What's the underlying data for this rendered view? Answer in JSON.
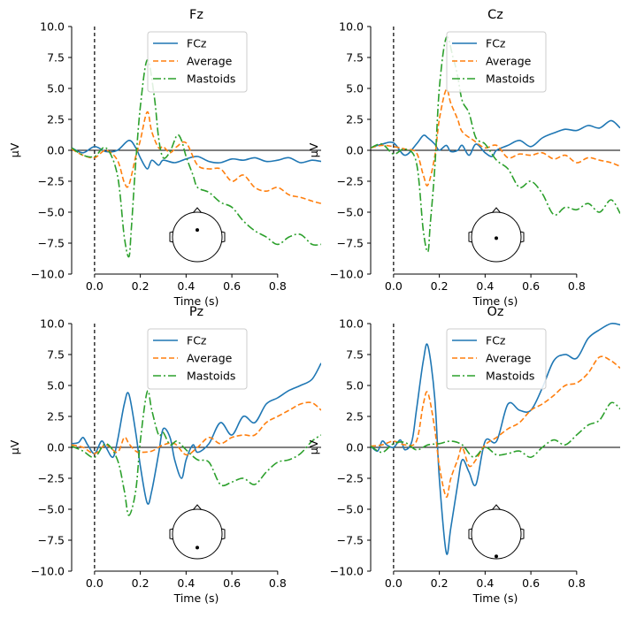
{
  "chart_data": [
    {
      "type": "line",
      "title": "Fz",
      "xlabel": "Time (s)",
      "ylabel": "µV",
      "xlim": [
        -0.1,
        0.99
      ],
      "ylim": [
        -10.0,
        10.0
      ],
      "xticks": [
        0.0,
        0.2,
        0.4,
        0.6,
        0.8
      ],
      "xtick_labels": [
        "0.0",
        "0.2",
        "0.4",
        "0.6",
        "0.8"
      ],
      "yticks": [
        -10.0,
        -7.5,
        -5.0,
        -2.5,
        0.0,
        2.5,
        5.0,
        7.5,
        10.0
      ],
      "ytick_labels": [
        "−10.0",
        "−7.5",
        "−5.0",
        "−2.5",
        "0.0",
        "2.5",
        "5.0",
        "7.5",
        "10.0"
      ],
      "legend": "upper center",
      "sensor": "front-center",
      "series": [
        {
          "name": "FCz",
          "color": "#1f77b4",
          "dash": "solid",
          "x": [
            -0.1,
            -0.05,
            0.0,
            0.05,
            0.1,
            0.15,
            0.18,
            0.2,
            0.23,
            0.25,
            0.28,
            0.3,
            0.35,
            0.4,
            0.45,
            0.5,
            0.55,
            0.6,
            0.65,
            0.7,
            0.75,
            0.8,
            0.85,
            0.9,
            0.95,
            0.99
          ],
          "y": [
            0.2,
            -0.2,
            0.3,
            -0.1,
            0.0,
            0.8,
            0.2,
            -0.6,
            -1.5,
            -0.8,
            -1.2,
            -0.8,
            -1.0,
            -0.7,
            -0.5,
            -0.9,
            -1.0,
            -0.7,
            -0.8,
            -0.6,
            -0.9,
            -0.8,
            -0.6,
            -1.0,
            -0.8,
            -0.9
          ]
        },
        {
          "name": "Average",
          "color": "#ff7f0e",
          "dash": "dashed",
          "x": [
            -0.1,
            -0.05,
            0.0,
            0.05,
            0.1,
            0.13,
            0.15,
            0.18,
            0.2,
            0.23,
            0.25,
            0.28,
            0.3,
            0.33,
            0.36,
            0.4,
            0.45,
            0.5,
            0.55,
            0.6,
            0.65,
            0.7,
            0.75,
            0.8,
            0.85,
            0.9,
            0.95,
            0.99
          ],
          "y": [
            0.1,
            -0.4,
            -0.6,
            0.0,
            -0.8,
            -2.6,
            -2.8,
            -0.5,
            0.8,
            3.1,
            1.5,
            0.2,
            0.3,
            -0.2,
            0.3,
            0.6,
            -1.2,
            -1.5,
            -1.5,
            -2.5,
            -2.0,
            -3.0,
            -3.3,
            -3.0,
            -3.6,
            -3.8,
            -4.1,
            -4.3
          ]
        },
        {
          "name": "Mastoids",
          "color": "#2ca02c",
          "dash": "dashdot",
          "x": [
            -0.1,
            -0.05,
            0.0,
            0.05,
            0.1,
            0.13,
            0.15,
            0.16,
            0.18,
            0.2,
            0.23,
            0.26,
            0.28,
            0.3,
            0.33,
            0.36,
            0.38,
            0.4,
            0.43,
            0.45,
            0.5,
            0.55,
            0.6,
            0.65,
            0.7,
            0.75,
            0.8,
            0.85,
            0.9,
            0.95,
            0.99
          ],
          "y": [
            0.2,
            -0.4,
            -0.5,
            0.2,
            -2.0,
            -7.0,
            -8.6,
            -6.5,
            -1.0,
            3.5,
            7.3,
            4.5,
            1.0,
            -0.6,
            -0.1,
            1.2,
            0.8,
            -0.5,
            -2.0,
            -3.0,
            -3.4,
            -4.2,
            -4.6,
            -5.7,
            -6.5,
            -7.0,
            -7.6,
            -7.0,
            -6.8,
            -7.6,
            -7.6
          ]
        }
      ]
    },
    {
      "type": "line",
      "title": "Cz",
      "xlabel": "Time (s)",
      "ylabel": "µV",
      "xlim": [
        -0.1,
        0.99
      ],
      "ylim": [
        -10.0,
        10.0
      ],
      "xticks": [
        0.0,
        0.2,
        0.4,
        0.6,
        0.8
      ],
      "xtick_labels": [
        "0.0",
        "0.2",
        "0.4",
        "0.6",
        "0.8"
      ],
      "yticks": [
        -10.0,
        -7.5,
        -5.0,
        -2.5,
        0.0,
        2.5,
        5.0,
        7.5,
        10.0
      ],
      "ytick_labels": [
        "−10.0",
        "−7.5",
        "−5.0",
        "−2.5",
        "0.0",
        "2.5",
        "5.0",
        "7.5",
        "10.0"
      ],
      "legend": "upper center",
      "sensor": "center",
      "series": [
        {
          "name": "FCz",
          "color": "#1f77b4",
          "dash": "solid",
          "x": [
            -0.1,
            -0.05,
            0.0,
            0.05,
            0.1,
            0.13,
            0.15,
            0.18,
            0.2,
            0.23,
            0.25,
            0.28,
            0.3,
            0.33,
            0.36,
            0.4,
            0.43,
            0.45,
            0.5,
            0.55,
            0.6,
            0.65,
            0.7,
            0.75,
            0.8,
            0.85,
            0.9,
            0.95,
            0.99
          ],
          "y": [
            0.2,
            0.5,
            0.6,
            -0.4,
            0.5,
            1.2,
            1.0,
            0.5,
            0.0,
            0.4,
            -0.1,
            0.0,
            0.4,
            -0.4,
            0.5,
            -0.2,
            -0.5,
            0.0,
            0.4,
            0.8,
            0.3,
            1.0,
            1.4,
            1.7,
            1.6,
            2.0,
            1.8,
            2.4,
            1.8
          ]
        },
        {
          "name": "Average",
          "color": "#ff7f0e",
          "dash": "dashed",
          "x": [
            -0.1,
            -0.05,
            0.0,
            0.05,
            0.1,
            0.13,
            0.15,
            0.18,
            0.2,
            0.23,
            0.25,
            0.28,
            0.3,
            0.35,
            0.4,
            0.45,
            0.5,
            0.55,
            0.6,
            0.65,
            0.7,
            0.75,
            0.8,
            0.85,
            0.9,
            0.95,
            0.99
          ],
          "y": [
            0.2,
            0.4,
            0.3,
            0.1,
            -0.2,
            -2.0,
            -2.8,
            -0.5,
            2.5,
            4.9,
            3.8,
            2.5,
            1.5,
            0.8,
            0.2,
            0.4,
            -0.6,
            -0.3,
            -0.4,
            -0.2,
            -0.7,
            -0.4,
            -1.0,
            -0.6,
            -0.8,
            -1.0,
            -1.3
          ]
        },
        {
          "name": "Mastoids",
          "color": "#2ca02c",
          "dash": "dashdot",
          "x": [
            -0.1,
            -0.05,
            0.0,
            0.05,
            0.1,
            0.13,
            0.15,
            0.16,
            0.18,
            0.2,
            0.23,
            0.26,
            0.28,
            0.3,
            0.33,
            0.36,
            0.4,
            0.45,
            0.5,
            0.55,
            0.6,
            0.65,
            0.7,
            0.75,
            0.8,
            0.85,
            0.9,
            0.95,
            0.99
          ],
          "y": [
            0.2,
            0.5,
            -0.3,
            0.1,
            -1.0,
            -6.5,
            -8.2,
            -6.0,
            -1.5,
            5.0,
            9.1,
            7.5,
            6.0,
            4.0,
            3.0,
            1.0,
            0.5,
            -0.8,
            -1.5,
            -3.0,
            -2.5,
            -3.5,
            -5.2,
            -4.6,
            -4.8,
            -4.3,
            -5.0,
            -4.0,
            -5.1
          ]
        }
      ]
    },
    {
      "type": "line",
      "title": "Pz",
      "xlabel": "Time (s)",
      "ylabel": "µV",
      "xlim": [
        -0.1,
        0.99
      ],
      "ylim": [
        -10.0,
        10.0
      ],
      "xticks": [
        0.0,
        0.2,
        0.4,
        0.6,
        0.8
      ],
      "xtick_labels": [
        "0.0",
        "0.2",
        "0.4",
        "0.6",
        "0.8"
      ],
      "yticks": [
        -10.0,
        -7.5,
        -5.0,
        -2.5,
        0.0,
        2.5,
        5.0,
        7.5,
        10.0
      ],
      "ytick_labels": [
        "−10.0",
        "−7.5",
        "−5.0",
        "−2.5",
        "0.0",
        "2.5",
        "5.0",
        "7.5",
        "10.0"
      ],
      "legend": "upper center",
      "sensor": "back-center",
      "series": [
        {
          "name": "FCz",
          "color": "#1f77b4",
          "dash": "solid",
          "x": [
            -0.1,
            -0.07,
            -0.05,
            -0.03,
            0.0,
            0.03,
            0.05,
            0.08,
            0.1,
            0.13,
            0.15,
            0.18,
            0.2,
            0.23,
            0.25,
            0.28,
            0.3,
            0.33,
            0.35,
            0.38,
            0.4,
            0.43,
            0.45,
            0.5,
            0.55,
            0.6,
            0.65,
            0.7,
            0.75,
            0.8,
            0.85,
            0.9,
            0.95,
            0.99
          ],
          "y": [
            0.3,
            0.4,
            0.8,
            0.2,
            -0.5,
            0.5,
            0.0,
            -0.8,
            0.5,
            3.5,
            4.3,
            1.2,
            -1.5,
            -4.5,
            -3.5,
            -0.5,
            1.5,
            0.8,
            -1.0,
            -2.5,
            -1.0,
            0.2,
            -0.4,
            0.3,
            2.0,
            1.0,
            2.5,
            2.0,
            3.5,
            4.0,
            4.6,
            5.0,
            5.5,
            6.8
          ]
        },
        {
          "name": "Average",
          "color": "#ff7f0e",
          "dash": "dashed",
          "x": [
            -0.1,
            -0.05,
            0.0,
            0.05,
            0.1,
            0.13,
            0.15,
            0.18,
            0.2,
            0.25,
            0.3,
            0.35,
            0.4,
            0.45,
            0.5,
            0.55,
            0.6,
            0.65,
            0.7,
            0.75,
            0.8,
            0.85,
            0.9,
            0.95,
            0.99
          ],
          "y": [
            0.2,
            0.0,
            -0.5,
            0.2,
            -0.4,
            0.8,
            0.3,
            -0.3,
            -0.4,
            -0.3,
            0.2,
            0.3,
            -0.6,
            0.0,
            0.8,
            0.3,
            0.8,
            1.0,
            1.0,
            2.0,
            2.5,
            3.0,
            3.5,
            3.6,
            3.0
          ]
        },
        {
          "name": "Mastoids",
          "color": "#2ca02c",
          "dash": "dashdot",
          "x": [
            -0.1,
            -0.05,
            0.0,
            0.05,
            0.1,
            0.13,
            0.15,
            0.18,
            0.2,
            0.23,
            0.25,
            0.28,
            0.3,
            0.33,
            0.36,
            0.4,
            0.45,
            0.5,
            0.55,
            0.6,
            0.65,
            0.7,
            0.75,
            0.8,
            0.85,
            0.9,
            0.95,
            0.99
          ],
          "y": [
            0.1,
            -0.3,
            -0.8,
            0.3,
            -1.0,
            -3.5,
            -5.5,
            -3.5,
            0.5,
            4.5,
            3.0,
            1.0,
            1.2,
            0.2,
            0.5,
            -0.2,
            -1.0,
            -1.2,
            -3.0,
            -2.8,
            -2.5,
            -3.0,
            -2.0,
            -1.2,
            -1.0,
            -0.5,
            0.5,
            1.0
          ]
        }
      ]
    },
    {
      "type": "line",
      "title": "Oz",
      "xlabel": "Time (s)",
      "ylabel": "µV",
      "xlim": [
        -0.1,
        0.99
      ],
      "ylim": [
        -10.0,
        10.0
      ],
      "xticks": [
        0.0,
        0.2,
        0.4,
        0.6,
        0.8
      ],
      "xtick_labels": [
        "0.0",
        "0.2",
        "0.4",
        "0.6",
        "0.8"
      ],
      "yticks": [
        -10.0,
        -7.5,
        -5.0,
        -2.5,
        0.0,
        2.5,
        5.0,
        7.5,
        10.0
      ],
      "ytick_labels": [
        "−10.0",
        "−7.5",
        "−5.0",
        "−2.5",
        "0.0",
        "2.5",
        "5.0",
        "7.5",
        "10.0"
      ],
      "legend": "upper center",
      "sensor": "back",
      "series": [
        {
          "name": "FCz",
          "color": "#1f77b4",
          "dash": "solid",
          "x": [
            -0.1,
            -0.07,
            -0.05,
            -0.03,
            0.0,
            0.03,
            0.05,
            0.08,
            0.1,
            0.13,
            0.15,
            0.18,
            0.2,
            0.23,
            0.25,
            0.28,
            0.3,
            0.33,
            0.36,
            0.4,
            0.45,
            0.5,
            0.55,
            0.6,
            0.65,
            0.7,
            0.75,
            0.8,
            0.85,
            0.9,
            0.95,
            0.99
          ],
          "y": [
            0.1,
            -0.3,
            0.5,
            0.2,
            0.0,
            0.6,
            -0.2,
            0.5,
            3.0,
            7.0,
            8.2,
            4.0,
            -2.5,
            -8.5,
            -6.5,
            -3.0,
            -1.0,
            -2.0,
            -3.0,
            0.5,
            0.5,
            3.5,
            3.0,
            3.0,
            4.8,
            7.0,
            7.5,
            7.2,
            8.8,
            9.5,
            10.0,
            9.9
          ]
        },
        {
          "name": "Average",
          "color": "#ff7f0e",
          "dash": "dashed",
          "x": [
            -0.1,
            -0.05,
            0.0,
            0.05,
            0.1,
            0.13,
            0.15,
            0.18,
            0.2,
            0.23,
            0.25,
            0.28,
            0.3,
            0.33,
            0.36,
            0.4,
            0.45,
            0.5,
            0.55,
            0.6,
            0.65,
            0.7,
            0.75,
            0.8,
            0.85,
            0.9,
            0.95,
            0.99
          ],
          "y": [
            0.1,
            0.2,
            0.5,
            0.2,
            0.5,
            3.5,
            4.4,
            1.5,
            -1.5,
            -4.0,
            -2.5,
            -1.0,
            0.0,
            -1.5,
            -1.0,
            0.2,
            0.8,
            1.5,
            2.0,
            3.0,
            3.5,
            4.2,
            5.0,
            5.2,
            6.0,
            7.3,
            7.0,
            6.4
          ]
        },
        {
          "name": "Mastoids",
          "color": "#2ca02c",
          "dash": "dashdot",
          "x": [
            -0.1,
            -0.05,
            0.0,
            0.05,
            0.1,
            0.15,
            0.2,
            0.25,
            0.3,
            0.35,
            0.4,
            0.45,
            0.5,
            0.55,
            0.6,
            0.65,
            0.7,
            0.75,
            0.8,
            0.85,
            0.9,
            0.95,
            0.99
          ],
          "y": [
            0.1,
            -0.4,
            0.3,
            0.4,
            -0.2,
            0.2,
            0.3,
            0.5,
            0.2,
            -0.8,
            0.0,
            -0.6,
            -0.5,
            -0.3,
            -0.8,
            0.0,
            0.6,
            0.2,
            1.0,
            1.8,
            2.2,
            3.6,
            3.1
          ]
        }
      ]
    }
  ]
}
